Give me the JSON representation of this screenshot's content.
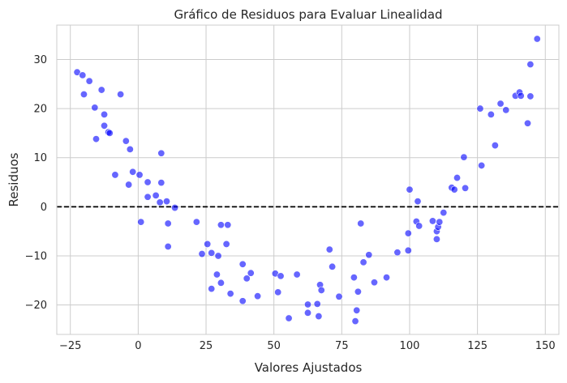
{
  "chart_data": {
    "type": "scatter",
    "title": "Gráfico de Residuos para Evaluar Linealidad",
    "xlabel": "Valores Ajustados",
    "ylabel": "Residuos",
    "xlim": [
      -30,
      155
    ],
    "ylim": [
      -26,
      37
    ],
    "xticks": [
      -25,
      0,
      25,
      50,
      75,
      100,
      125,
      150
    ],
    "xtick_labels": [
      "−25",
      "0",
      "25",
      "50",
      "75",
      "100",
      "125",
      "150"
    ],
    "yticks": [
      -20,
      -10,
      0,
      10,
      20,
      30
    ],
    "ytick_labels": [
      "−20",
      "−10",
      "0",
      "10",
      "20",
      "30"
    ],
    "grid": true,
    "reference_line": {
      "y": 0,
      "style": "dashed",
      "color": "#000000"
    },
    "point_color": "#0000ff",
    "points": [
      [
        -22.5,
        27.4
      ],
      [
        -20.5,
        26.8
      ],
      [
        -20,
        22.9
      ],
      [
        -18,
        25.6
      ],
      [
        -16,
        20.2
      ],
      [
        -15.5,
        13.8
      ],
      [
        -13.5,
        23.8
      ],
      [
        -12.5,
        18.8
      ],
      [
        -12.5,
        16.5
      ],
      [
        -11,
        15.2
      ],
      [
        -10.5,
        15
      ],
      [
        -8.5,
        6.5
      ],
      [
        -6.5,
        22.9
      ],
      [
        -4.5,
        13.4
      ],
      [
        -3.5,
        4.5
      ],
      [
        -3,
        11.7
      ],
      [
        -2,
        7.1
      ],
      [
        0.5,
        6.5
      ],
      [
        1,
        -3.1
      ],
      [
        3.5,
        5
      ],
      [
        3.5,
        2
      ],
      [
        6.5,
        2.3
      ],
      [
        8,
        0.9
      ],
      [
        8.5,
        4.9
      ],
      [
        8.5,
        10.9
      ],
      [
        10.5,
        1.1
      ],
      [
        11,
        -3.4
      ],
      [
        11,
        -8.1
      ],
      [
        13.5,
        -0.2
      ],
      [
        21.5,
        -3.1
      ],
      [
        23.5,
        -9.6
      ],
      [
        25.5,
        -7.6
      ],
      [
        27,
        -9.4
      ],
      [
        27,
        -16.7
      ],
      [
        29,
        -13.8
      ],
      [
        29.5,
        -10
      ],
      [
        30.5,
        -15.5
      ],
      [
        30.5,
        -3.7
      ],
      [
        32.5,
        -7.6
      ],
      [
        33,
        -3.7
      ],
      [
        34,
        -17.7
      ],
      [
        38.5,
        -11.7
      ],
      [
        38.5,
        -19.2
      ],
      [
        40,
        -14.6
      ],
      [
        41.5,
        -13.5
      ],
      [
        44,
        -18.2
      ],
      [
        50.5,
        -13.6
      ],
      [
        51.5,
        -17.4
      ],
      [
        52.5,
        -14.1
      ],
      [
        55.5,
        -22.7
      ],
      [
        58.5,
        -13.8
      ],
      [
        62.5,
        -19.9
      ],
      [
        62.5,
        -21.6
      ],
      [
        66,
        -19.8
      ],
      [
        66.5,
        -22.3
      ],
      [
        67,
        -15.9
      ],
      [
        67.5,
        -17
      ],
      [
        70.5,
        -8.7
      ],
      [
        71.5,
        -12.2
      ],
      [
        74,
        -18.3
      ],
      [
        79.5,
        -14.4
      ],
      [
        80,
        -23.3
      ],
      [
        80.5,
        -21.1
      ],
      [
        81,
        -17.3
      ],
      [
        82,
        -3.4
      ],
      [
        83,
        -11.3
      ],
      [
        85,
        -9.8
      ],
      [
        87,
        -15.4
      ],
      [
        91.5,
        -14.4
      ],
      [
        95.5,
        -9.3
      ],
      [
        99.5,
        -8.9
      ],
      [
        99.5,
        -5.4
      ],
      [
        100,
        3.5
      ],
      [
        102.5,
        -3
      ],
      [
        103,
        1.1
      ],
      [
        103.5,
        -3.9
      ],
      [
        108.5,
        -2.9
      ],
      [
        110,
        -5
      ],
      [
        110,
        -6.6
      ],
      [
        110.5,
        -4.1
      ],
      [
        111,
        -3.1
      ],
      [
        112.5,
        -1.2
      ],
      [
        115.5,
        3.9
      ],
      [
        116.5,
        3.5
      ],
      [
        117.5,
        5.9
      ],
      [
        120,
        10.1
      ],
      [
        120.5,
        3.8
      ],
      [
        126,
        20
      ],
      [
        126.5,
        8.4
      ],
      [
        130,
        18.8
      ],
      [
        131.5,
        12.5
      ],
      [
        133.5,
        21
      ],
      [
        135.5,
        19.7
      ],
      [
        139,
        22.6
      ],
      [
        140.5,
        23.3
      ],
      [
        141,
        22.6
      ],
      [
        143.5,
        17
      ],
      [
        144.5,
        22.5
      ],
      [
        144.5,
        29
      ],
      [
        147,
        34.2
      ]
    ]
  }
}
